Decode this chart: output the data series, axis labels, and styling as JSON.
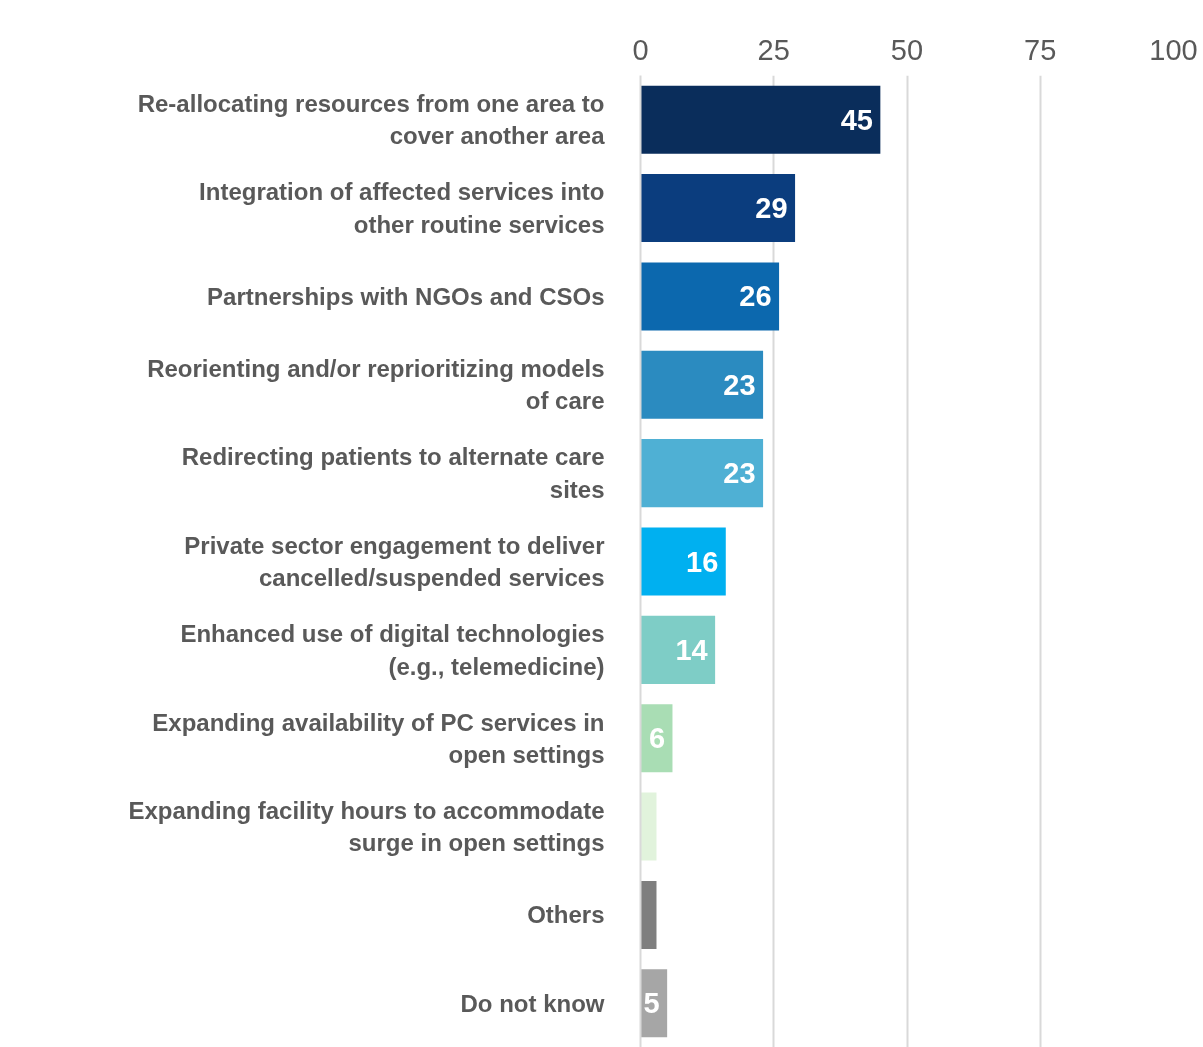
{
  "chart_data": {
    "type": "bar",
    "orientation": "horizontal",
    "categories": [
      "Re-allocating resources from one area to cover another area",
      "Integration of affected services into other routine services",
      "Partnerships with NGOs and CSOs",
      "Reorienting and/or reprioritizing models of care",
      "Redirecting patients to alternate care sites",
      "Private sector engagement to deliver cancelled/suspended services",
      "Enhanced use of digital technologies (e.g., telemedicine)",
      "Expanding availability of PC services in open settings",
      "Expanding facility hours to accommodate surge in open settings",
      "Others",
      "Do not know"
    ],
    "values": [
      45,
      29,
      26,
      23,
      23,
      16,
      14,
      6,
      3,
      3,
      5
    ],
    "colors": [
      "#0a2d5b",
      "#0b3d7e",
      "#0c68ae",
      "#2b8bc0",
      "#4fb0d4",
      "#00b0f0",
      "#7ecdc6",
      "#a9ddb4",
      "#e1f3dc",
      "#7f7f7f",
      "#a6a6a6"
    ],
    "value_labels": [
      "45",
      "29",
      "26",
      "23",
      "23",
      "16",
      "14",
      "6",
      null,
      null,
      "5"
    ],
    "xlim": [
      0,
      100
    ],
    "xticks": [
      0,
      25,
      50,
      75,
      100
    ],
    "grid": "x"
  }
}
